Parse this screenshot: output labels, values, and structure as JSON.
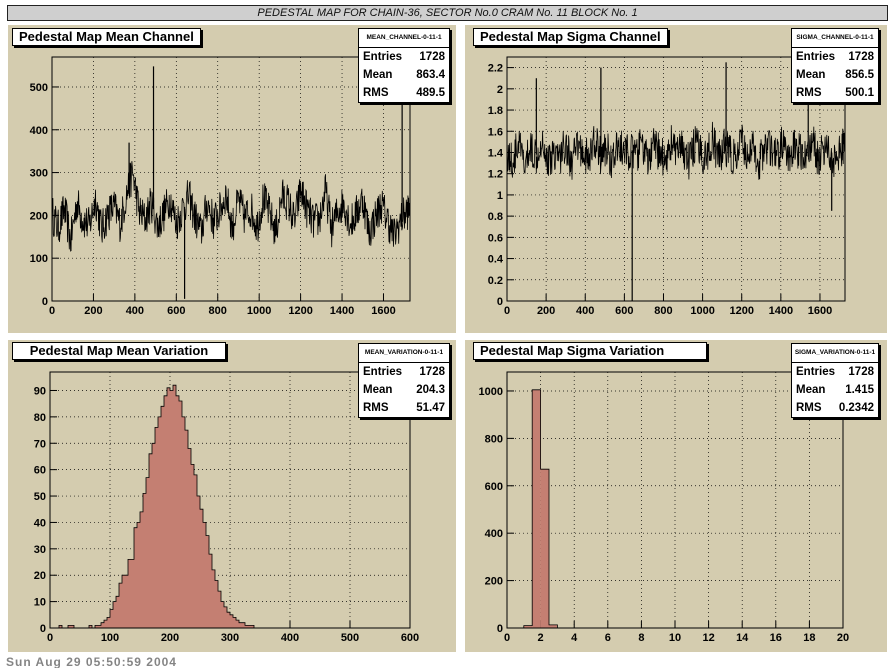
{
  "page": {
    "title": "PEDESTAL MAP FOR CHAIN-36, SECTOR No.0 CRAM No. 11 BLOCK No. 1",
    "footer": "Sun Aug 29 05:50:59 2004"
  },
  "colors": {
    "pad_background": "#d4ccaf",
    "histogram_fill": "#c47f72",
    "line": "#000000"
  },
  "panels": [
    {
      "title": "Pedestal Map Mean Channel",
      "stats": {
        "name": "MEAN_CHANNEL-0-11-1",
        "entries_label": "Entries",
        "entries": "1728",
        "mean_label": "Mean",
        "mean": "863.4",
        "rms_label": "RMS",
        "rms": "489.5"
      }
    },
    {
      "title": "Pedestal Map Sigma Channel",
      "stats": {
        "name": "SIGMA_CHANNEL-0-11-1",
        "entries_label": "Entries",
        "entries": "1728",
        "mean_label": "Mean",
        "mean": "856.5",
        "rms_label": "RMS",
        "rms": "500.1"
      }
    },
    {
      "title": "Pedestal Map Mean Variation",
      "stats": {
        "name": "MEAN_VARIATION-0-11-1",
        "entries_label": "Entries",
        "entries": "1728",
        "mean_label": "Mean",
        "mean": "204.3",
        "rms_label": "RMS",
        "rms": "51.47"
      }
    },
    {
      "title": "Pedestal Map Sigma Variation",
      "stats": {
        "name": "SIGMA_VARIATION-0-11-1",
        "entries_label": "Entries",
        "entries": "1728",
        "mean_label": "Mean",
        "mean": "1.415",
        "rms_label": "RMS",
        "rms": "0.2342"
      }
    }
  ],
  "chart_data": [
    {
      "type": "line",
      "title": "Pedestal Map Mean Channel",
      "x_range": [
        0,
        1728
      ],
      "ylim": [
        0,
        570
      ],
      "x_ticks": [
        "0",
        "200",
        "400",
        "600",
        "800",
        "1000",
        "1200",
        "1400",
        "1600"
      ],
      "y_ticks": [
        "0",
        "100",
        "200",
        "300",
        "400",
        "500"
      ],
      "grid": true,
      "x": [
        0,
        30,
        60,
        90,
        120,
        150,
        180,
        210,
        240,
        270,
        300,
        330,
        360,
        390,
        420,
        450,
        480,
        510,
        540,
        570,
        600,
        630,
        660,
        690,
        720,
        750,
        780,
        810,
        840,
        870,
        900,
        930,
        960,
        990,
        1020,
        1050,
        1080,
        1110,
        1140,
        1170,
        1200,
        1230,
        1260,
        1290,
        1320,
        1350,
        1380,
        1410,
        1440,
        1470,
        1500,
        1530,
        1560,
        1590,
        1620,
        1650,
        1680,
        1710
      ],
      "values": [
        205,
        170,
        215,
        140,
        230,
        190,
        175,
        240,
        165,
        205,
        220,
        180,
        250,
        300,
        210,
        190,
        230,
        175,
        205,
        240,
        180,
        215,
        245,
        195,
        160,
        230,
        185,
        210,
        250,
        170,
        235,
        195,
        215,
        175,
        240,
        205,
        160,
        245,
        230,
        185,
        260,
        215,
        185,
        190,
        255,
        170,
        210,
        230,
        180,
        205,
        240,
        160,
        195,
        225,
        190,
        150,
        185,
        210
      ],
      "spikes": [
        {
          "x": 372,
          "y": 370
        },
        {
          "x": 490,
          "y": 548
        },
        {
          "x": 640,
          "y": 5
        },
        {
          "x": 1690,
          "y": 460
        }
      ]
    },
    {
      "type": "line",
      "title": "Pedestal Map Sigma Channel",
      "x_range": [
        0,
        1728
      ],
      "ylim": [
        0,
        2.3
      ],
      "x_ticks": [
        "0",
        "200",
        "400",
        "600",
        "800",
        "1000",
        "1200",
        "1400",
        "1600"
      ],
      "y_ticks": [
        "0",
        "0.2",
        "0.4",
        "0.6",
        "0.8",
        "1",
        "1.2",
        "1.4",
        "1.6",
        "1.8",
        "2",
        "2.2"
      ],
      "grid": true,
      "x": [
        0,
        30,
        60,
        90,
        120,
        150,
        180,
        210,
        240,
        270,
        300,
        330,
        360,
        390,
        420,
        450,
        480,
        510,
        540,
        570,
        600,
        630,
        660,
        690,
        720,
        750,
        780,
        810,
        840,
        870,
        900,
        930,
        960,
        990,
        1020,
        1050,
        1080,
        1110,
        1140,
        1170,
        1200,
        1230,
        1260,
        1290,
        1320,
        1350,
        1380,
        1410,
        1440,
        1470,
        1500,
        1530,
        1560,
        1590,
        1620,
        1650,
        1680,
        1710
      ],
      "values": [
        1.4,
        1.3,
        1.5,
        1.25,
        1.45,
        1.38,
        1.55,
        1.3,
        1.42,
        1.35,
        1.5,
        1.28,
        1.46,
        1.4,
        1.33,
        1.52,
        1.36,
        1.44,
        1.3,
        1.48,
        1.38,
        1.42,
        1.35,
        1.5,
        1.3,
        1.45,
        1.4,
        1.33,
        1.5,
        1.38,
        1.44,
        1.3,
        1.48,
        1.4,
        1.36,
        1.52,
        1.34,
        1.46,
        1.4,
        1.32,
        1.5,
        1.38,
        1.44,
        1.3,
        1.48,
        1.42,
        1.35,
        1.5,
        1.3,
        1.45,
        1.4,
        1.36,
        1.52,
        1.34,
        1.46,
        1.4,
        1.32,
        1.45
      ],
      "spikes": [
        {
          "x": 640,
          "y": 0.0
        },
        {
          "x": 480,
          "y": 2.2
        },
        {
          "x": 1120,
          "y": 2.25
        },
        {
          "x": 1540,
          "y": 2.2
        },
        {
          "x": 150,
          "y": 2.1
        },
        {
          "x": 1660,
          "y": 0.85
        }
      ]
    },
    {
      "type": "bar",
      "title": "Pedestal Map Mean Variation",
      "xlim": [
        0,
        600
      ],
      "ylim": [
        0,
        97
      ],
      "bin_width": 5,
      "x_ticks": [
        "0",
        "100",
        "200",
        "300",
        "400",
        "500",
        "600"
      ],
      "y_ticks": [
        "0",
        "10",
        "20",
        "30",
        "40",
        "50",
        "60",
        "70",
        "80",
        "90"
      ],
      "grid": true,
      "bin_edges_start": 0,
      "values": [
        0,
        0,
        0,
        1,
        0,
        0,
        1,
        1,
        0,
        0,
        0,
        0,
        0,
        1,
        0,
        1,
        1,
        2,
        3,
        4,
        7,
        10,
        12,
        17,
        20,
        20,
        26,
        26,
        38,
        40,
        44,
        51,
        57,
        66,
        70,
        76,
        80,
        84,
        88,
        91,
        90,
        92,
        88,
        86,
        80,
        75,
        68,
        62,
        58,
        50,
        45,
        40,
        35,
        28,
        22,
        18,
        14,
        10,
        8,
        6,
        5,
        4,
        3,
        2,
        2,
        1,
        1,
        1,
        0,
        0,
        0,
        0,
        0,
        0,
        0,
        0,
        0,
        0,
        0,
        0,
        0,
        0,
        0,
        0,
        0,
        0,
        0,
        0,
        0,
        0,
        0,
        0,
        0,
        0,
        0,
        0,
        0,
        0,
        0,
        0,
        0,
        0,
        0,
        0,
        0,
        0,
        0,
        0,
        0,
        0,
        0,
        0,
        0,
        0,
        0,
        0,
        0,
        0,
        0,
        0
      ]
    },
    {
      "type": "bar",
      "title": "Pedestal Map Sigma Variation",
      "xlim": [
        0,
        20
      ],
      "ylim": [
        0,
        1080
      ],
      "bin_width": 0.5,
      "x_ticks": [
        "0",
        "2",
        "4",
        "6",
        "8",
        "10",
        "12",
        "14",
        "16",
        "18",
        "20"
      ],
      "y_ticks": [
        "0",
        "200",
        "400",
        "600",
        "800",
        "1000"
      ],
      "grid": true,
      "bin_edges_start": 0,
      "values": [
        0,
        0,
        10,
        1005,
        670,
        13,
        0,
        0,
        0,
        0,
        0,
        0,
        0,
        0,
        0,
        0,
        0,
        0,
        0,
        0,
        0,
        0,
        0,
        0,
        0,
        0,
        0,
        0,
        0,
        0,
        0,
        0,
        0,
        0,
        0,
        0,
        0,
        0,
        0,
        0
      ]
    }
  ]
}
